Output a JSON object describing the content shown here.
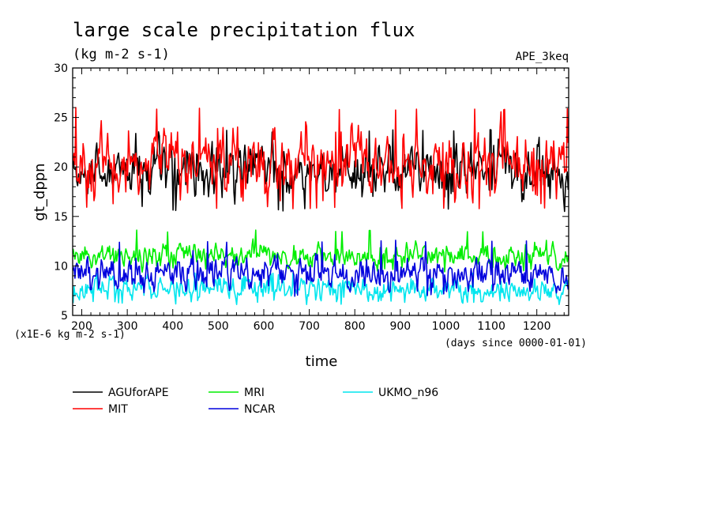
{
  "chart_data": {
    "type": "line",
    "title": "large scale precipitation flux",
    "subtitle": "(kg m-2 s-1)",
    "experiment": "APE_3keq",
    "xlabel": "time",
    "ylabel": "gt_dppn",
    "x_unit_note": "(days since 0000-01-01)",
    "y_unit_note": "(x1E-6 kg m-2 s-1)",
    "xlim": [
      180,
      1270
    ],
    "ylim": [
      5,
      30
    ],
    "x_ticks": [
      200,
      300,
      400,
      500,
      600,
      700,
      800,
      900,
      1000,
      1100,
      1200
    ],
    "y_ticks": [
      5,
      10,
      15,
      20,
      25,
      30
    ],
    "grid": false,
    "legend_position": "bottom",
    "series": [
      {
        "name": "AGUforAPE",
        "color": "#000000",
        "mean": 19.8,
        "min": 15.5,
        "max": 23.8
      },
      {
        "name": "MIT",
        "color": "#ff0000",
        "mean": 20.3,
        "min": 15.7,
        "max": 26.0
      },
      {
        "name": "MRI",
        "color": "#00ee00",
        "mean": 11.0,
        "min": 9.3,
        "max": 13.7
      },
      {
        "name": "NCAR",
        "color": "#0000dd",
        "mean": 9.2,
        "min": 6.9,
        "max": 12.6
      },
      {
        "name": "UKMO_n96",
        "color": "#00e5ee",
        "mean": 7.6,
        "min": 6.1,
        "max": 9.4
      }
    ]
  }
}
